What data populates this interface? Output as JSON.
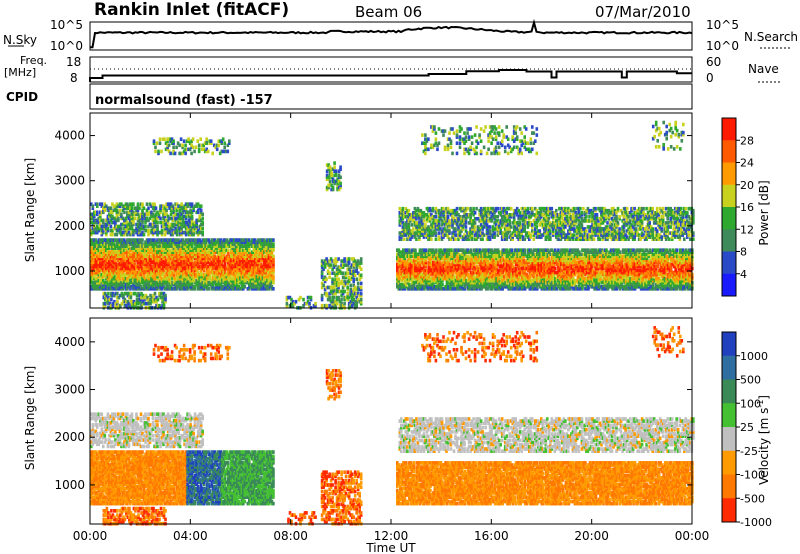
{
  "header": {
    "station": "Rankin Inlet (fitACF)",
    "beam": "Beam 06",
    "date": "07/Mar/2010"
  },
  "noise_panel": {
    "left_label": "N.Sky",
    "left_ticks": [
      "10^5",
      "10^0"
    ],
    "right_ticks": [
      "10^5",
      "10^0"
    ],
    "right_label": "N.Search"
  },
  "freq_panel": {
    "left_label_1": "Freq.",
    "left_label_2": "[MHz]",
    "left_ticks": [
      "18",
      "8"
    ],
    "right_ticks": [
      "60",
      "0"
    ],
    "right_label": "Nave"
  },
  "cpid_panel": {
    "label": "CPID",
    "program": "normalsound (fast) -157"
  },
  "xaxis": {
    "ticks": [
      "00:00",
      "04:00",
      "08:00",
      "12:00",
      "16:00",
      "20:00",
      "00:00"
    ],
    "label": "Time UT"
  },
  "yaxis": {
    "label": "Slant Range [km]",
    "ticks": [
      "1000",
      "2000",
      "3000",
      "4000"
    ]
  },
  "power_scale": {
    "label": "Power [dB]",
    "ticks": [
      "4",
      "8",
      "12",
      "16",
      "20",
      "24",
      "28"
    ],
    "colors": [
      "#1a1aff",
      "#2a4ac8",
      "#3f8a5a",
      "#2ea82e",
      "#c8d21e",
      "#ff9a00",
      "#ff5a00",
      "#ff1a00"
    ]
  },
  "velocity_scale": {
    "label_main": "Velocity",
    "label_unit": "[m s",
    "label_exp": "-1",
    "label_close": "]",
    "ticks": [
      "1000",
      "500",
      "100",
      "25",
      "-25",
      "-100",
      "-500",
      "-1000"
    ],
    "colors": [
      "#2040c0",
      "#2e6ea0",
      "#3a8a58",
      "#44c032",
      "#c0c0c0",
      "#ff9a00",
      "#ff7800",
      "#ff2a00"
    ]
  },
  "chart_data": {
    "type": "heatmap",
    "x_range": [
      "00:00",
      "24:00"
    ],
    "y_range_km": [
      180,
      4500
    ],
    "noise_sky_range": [
      1,
      100000
    ],
    "frequency_range_mhz": [
      8,
      18
    ],
    "nave_range": [
      0,
      60
    ]
  }
}
